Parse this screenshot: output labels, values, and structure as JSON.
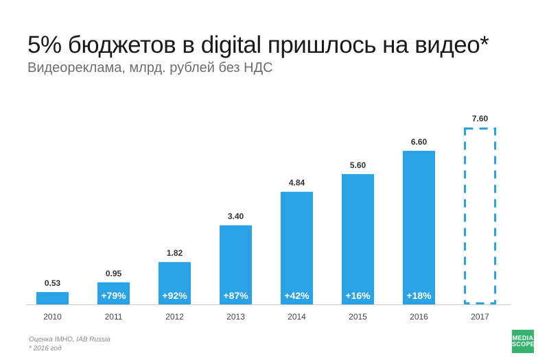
{
  "header": {
    "title": "5% бюджетов в digital пришлось на видео*",
    "subtitle": "Видеореклама, млрд. рублей без НДС"
  },
  "footnotes": {
    "source": "Оценка IMHO, IAB Russia",
    "note": "* 2016 год"
  },
  "logo": {
    "line1": "MEDIA",
    "line2": "SCOPE"
  },
  "colors": {
    "bar": "#29a3e6",
    "forecast_border": "#29a3e6",
    "value_label": "#333333",
    "growth_label": "#ffffff",
    "axis": "#d0d0d0"
  },
  "chart_data": {
    "type": "bar",
    "title": "5% бюджетов в digital пришлось на видео*",
    "subtitle": "Видеореклама, млрд. рублей без НДС",
    "xlabel": "",
    "ylabel": "",
    "ylim": [
      0,
      7.6
    ],
    "grid": false,
    "categories": [
      "2010",
      "2011",
      "2012",
      "2013",
      "2014",
      "2015",
      "2016",
      "2017"
    ],
    "values": [
      0.53,
      0.95,
      1.82,
      3.4,
      4.84,
      5.6,
      6.6,
      7.6
    ],
    "value_labels": [
      "0.53",
      "0.95",
      "1.82",
      "3.40",
      "4.84",
      "5.60",
      "6.60",
      "7.60"
    ],
    "growth_labels": [
      "",
      "+79%",
      "+92%",
      "+87%",
      "+42%",
      "+16%",
      "+18%",
      ""
    ],
    "forecast": [
      false,
      false,
      false,
      false,
      false,
      false,
      false,
      true
    ]
  }
}
